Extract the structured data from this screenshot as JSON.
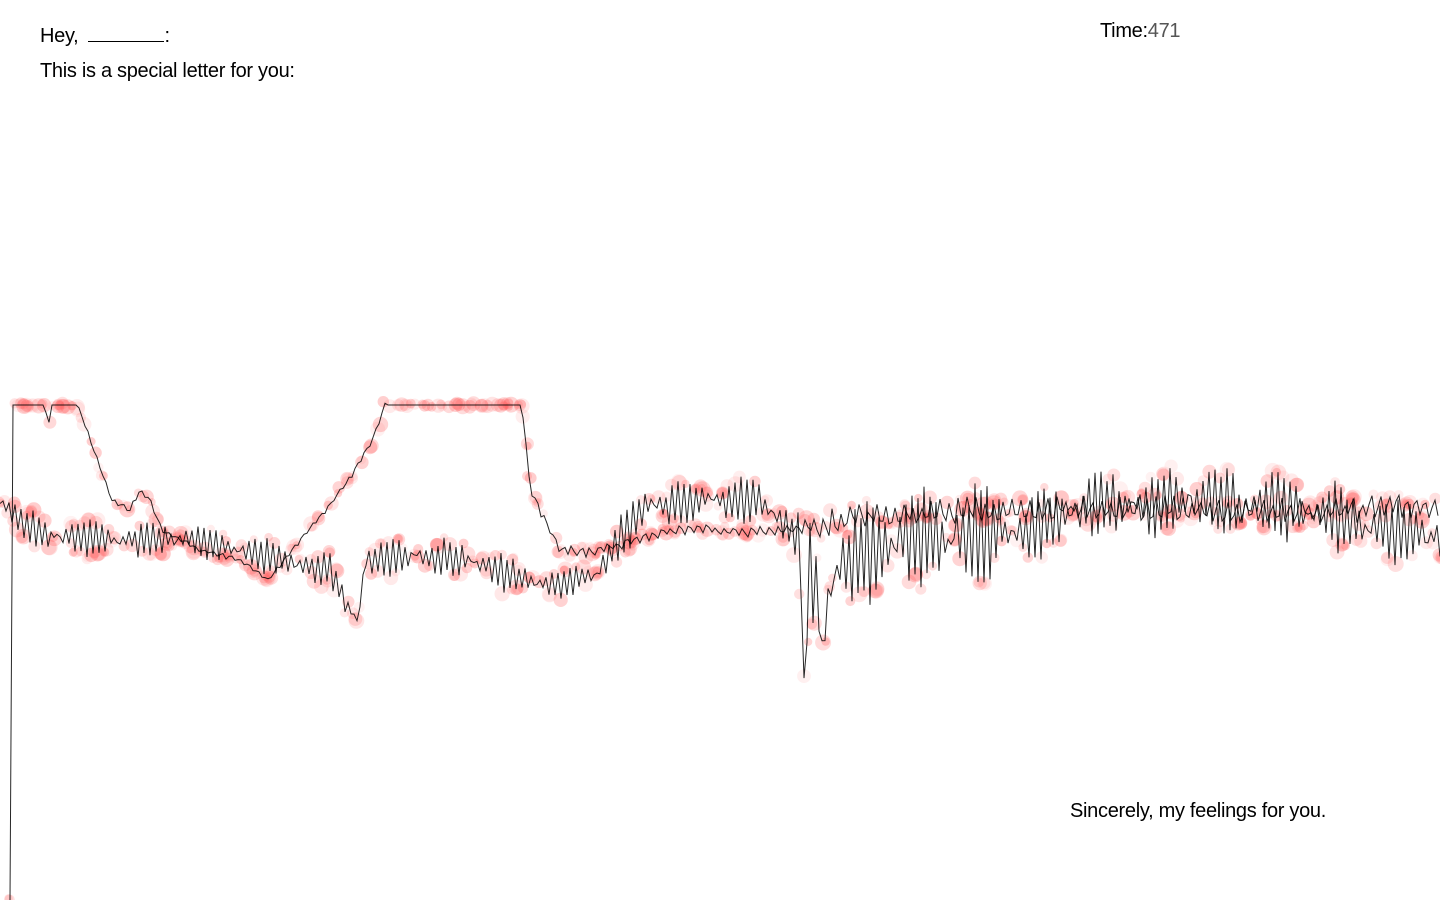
{
  "letter": {
    "greeting": "Hey,",
    "greeting_suffix": ":",
    "intro": "This is a special letter for you:",
    "signoff": "Sincerely, my feelings for you."
  },
  "timer": {
    "label": "Time:",
    "value": "471"
  },
  "colors": {
    "dot": "#ff5a5a",
    "line": "#000000",
    "background": "#ffffff"
  }
}
